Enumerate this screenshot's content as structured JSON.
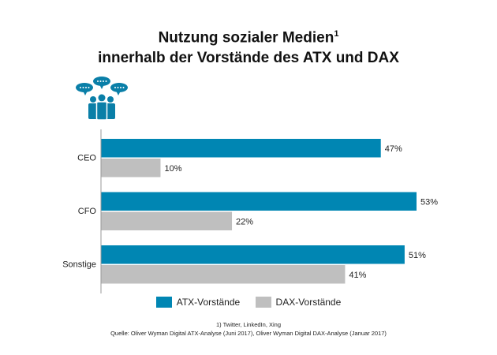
{
  "title": {
    "line1": "Nutzung sozialer Medien",
    "sup": "1",
    "line2": "innerhalb der Vorstände des ATX und DAX"
  },
  "icon": "people-speech-bubbles-icon",
  "chart_data": {
    "type": "bar",
    "orientation": "horizontal",
    "categories": [
      "CEO",
      "CFO",
      "Sonstige"
    ],
    "series": [
      {
        "name": "ATX-Vorstände",
        "color": "#0086b3",
        "values": [
          47,
          53,
          51
        ],
        "labels": [
          "47%",
          "53%",
          "51%"
        ]
      },
      {
        "name": "DAX-Vorstände",
        "color": "#bfbfbf",
        "values": [
          10,
          22,
          41
        ],
        "labels": [
          "10%",
          "22%",
          "41%"
        ]
      }
    ],
    "xlim": [
      0,
      53
    ],
    "unit": "%",
    "grid": false,
    "legend": "bottom"
  },
  "footnote": "1) Twitter, LinkedIn, Xing",
  "source": "Quelle: Oliver Wyman Digital ATX-Analyse (Juni 2017), Oliver Wyman Digital DAX-Analyse (Januar 2017)"
}
